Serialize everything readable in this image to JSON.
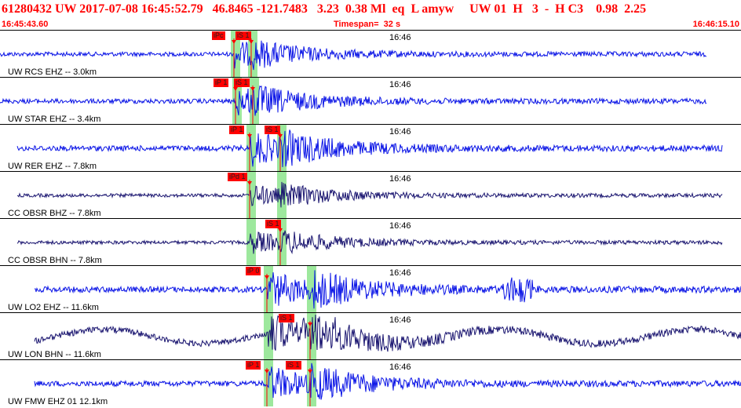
{
  "header": {
    "title": "61280432 UW 2017-07-08 16:45:52.79   46.8465 -121.7483   3.23  0.38 Ml  eq  L amyw     UW 01  H   3  -  H C3    0.98  2.25",
    "start_time": "16:45:43.60",
    "timespan": "Timespan=  32 s",
    "end_time": "16:46:15.10"
  },
  "colors": {
    "trace_blue": "#0a14e6",
    "trace_dark": "#1a1570",
    "pick_red": "#ff0000",
    "window_green": "#9de89d",
    "title_red": "#ff0000"
  },
  "panels": [
    {
      "channel": "UW RCS EHZ -- 3.0km",
      "time_mark": "16:46",
      "color": "blue",
      "amp": 0.55,
      "picks": [
        {
          "label": "iPc",
          "marker": "P"
        },
        {
          "label": "iS 1",
          "marker": "S"
        }
      ]
    },
    {
      "channel": "UW STAR EHZ -- 3.4km",
      "time_mark": "16:46",
      "color": "blue",
      "amp": 0.6,
      "picks": [
        {
          "label": "iP 1",
          "marker": "P"
        },
        {
          "label": "iS 1",
          "marker": "S"
        }
      ]
    },
    {
      "channel": "UW RER EHZ -- 7.8km",
      "time_mark": "16:46",
      "color": "blue",
      "amp": 0.7,
      "picks": [
        {
          "label": "iP 1",
          "marker": "P"
        },
        {
          "label": "iS 1",
          "marker": "S"
        }
      ]
    },
    {
      "channel": "CC OBSR BHZ -- 7.8km",
      "time_mark": "16:46",
      "color": "dark",
      "amp": 0.45,
      "picks": [
        {
          "label": "iPd 1",
          "marker": "P"
        }
      ]
    },
    {
      "channel": "CC OBSR BHN -- 7.8km",
      "time_mark": "16:46",
      "color": "dark",
      "amp": 0.45,
      "picks": [
        {
          "label": "iS 1",
          "marker": "S"
        }
      ]
    },
    {
      "channel": "UW LO2 EHZ -- 11.6km",
      "time_mark": "16:46",
      "color": "blue",
      "amp": 0.75,
      "picks": [
        {
          "label": "iP 0",
          "marker": "P"
        }
      ]
    },
    {
      "channel": "UW LON BHN -- 11.6km",
      "time_mark": "16:46",
      "color": "dark",
      "amp": 0.8,
      "picks": [
        {
          "label": "iS 1",
          "marker": "S"
        }
      ]
    },
    {
      "channel": "UW FMW EHZ 01 12.1km",
      "time_mark": "16:46",
      "color": "blue",
      "amp": 0.7,
      "picks": [
        {
          "label": "iP 1",
          "marker": "P"
        },
        {
          "label": "iS 1",
          "marker": "S"
        }
      ]
    }
  ]
}
